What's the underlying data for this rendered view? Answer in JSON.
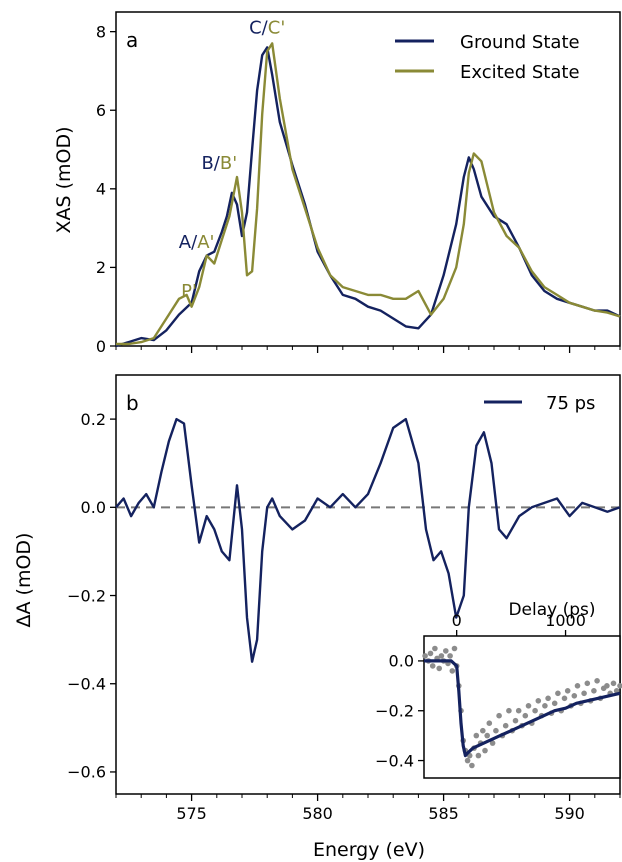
{
  "colors": {
    "ground": "#14225f",
    "excited": "#8a8a36",
    "dashed": "#777777",
    "scatter": "#8c8c8c",
    "axis": "#000000"
  },
  "chart_data": [
    {
      "id": "a",
      "type": "line",
      "panel_label": "a",
      "xlabel": "",
      "ylabel": "XAS (mOD)",
      "xlim": [
        572,
        592
      ],
      "ylim": [
        0,
        8.5
      ],
      "xticks": [
        575,
        580,
        585,
        590
      ],
      "xtick_labels": [
        "",
        "",
        "",
        ""
      ],
      "yticks": [
        0,
        2,
        4,
        6,
        8
      ],
      "ytick_labels": [
        "0",
        "2",
        "4",
        "6",
        "8"
      ],
      "legend": "top-right",
      "series": [
        {
          "name": "Ground State",
          "color": "#14225f",
          "x": [
            572.0,
            572.5,
            573.0,
            573.5,
            574.0,
            574.5,
            575.0,
            575.3,
            575.6,
            575.9,
            576.2,
            576.4,
            576.6,
            576.8,
            577.0,
            577.2,
            577.4,
            577.6,
            577.8,
            578.0,
            578.2,
            578.5,
            579.0,
            579.5,
            580.0,
            580.5,
            581.0,
            581.5,
            582.0,
            582.5,
            583.0,
            583.5,
            584.0,
            584.5,
            585.0,
            585.5,
            585.8,
            586.0,
            586.2,
            586.5,
            587.0,
            587.5,
            588.0,
            588.5,
            589.0,
            589.5,
            590.0,
            590.5,
            591.0,
            591.5,
            592.0
          ],
          "y": [
            0.0,
            0.1,
            0.2,
            0.15,
            0.4,
            0.8,
            1.1,
            1.9,
            2.3,
            2.4,
            2.9,
            3.3,
            3.9,
            3.6,
            2.8,
            3.4,
            5.0,
            6.5,
            7.4,
            7.6,
            6.9,
            5.7,
            4.6,
            3.6,
            2.4,
            1.8,
            1.3,
            1.2,
            1.0,
            0.9,
            0.7,
            0.5,
            0.45,
            0.8,
            1.8,
            3.1,
            4.3,
            4.8,
            4.5,
            3.8,
            3.3,
            3.1,
            2.5,
            1.8,
            1.4,
            1.2,
            1.1,
            1.0,
            0.9,
            0.9,
            0.75
          ]
        },
        {
          "name": "Excited State",
          "color": "#8a8a36",
          "x": [
            572.0,
            572.5,
            573.0,
            573.5,
            574.0,
            574.5,
            574.8,
            575.0,
            575.3,
            575.6,
            575.9,
            576.2,
            576.5,
            576.8,
            577.0,
            577.2,
            577.4,
            577.6,
            577.8,
            578.0,
            578.2,
            578.5,
            579.0,
            579.5,
            580.0,
            580.5,
            581.0,
            581.5,
            582.0,
            582.5,
            583.0,
            583.5,
            584.0,
            584.5,
            585.0,
            585.5,
            585.8,
            586.0,
            586.2,
            586.5,
            587.0,
            587.5,
            588.0,
            588.5,
            589.0,
            589.5,
            590.0,
            590.5,
            591.0,
            591.5,
            592.0
          ],
          "y": [
            0.05,
            0.05,
            0.1,
            0.2,
            0.7,
            1.2,
            1.3,
            1.0,
            1.5,
            2.3,
            2.1,
            2.7,
            3.3,
            4.3,
            3.4,
            1.8,
            1.9,
            3.5,
            5.9,
            7.5,
            7.7,
            6.3,
            4.5,
            3.5,
            2.5,
            1.8,
            1.5,
            1.4,
            1.3,
            1.3,
            1.2,
            1.2,
            1.4,
            0.8,
            1.2,
            2.0,
            3.1,
            4.4,
            4.9,
            4.7,
            3.4,
            2.8,
            2.5,
            1.9,
            1.5,
            1.3,
            1.1,
            1.0,
            0.9,
            0.85,
            0.75
          ]
        }
      ],
      "annotations": [
        {
          "x": 574.9,
          "y": 1.25,
          "parts": [
            {
              "text": "P'",
              "color": "#8a8a36"
            }
          ]
        },
        {
          "x": 575.2,
          "y": 2.5,
          "parts": [
            {
              "text": "A",
              "color": "#14225f"
            },
            {
              "text": "/",
              "color": "#14225f"
            },
            {
              "text": "A'",
              "color": "#8a8a36"
            }
          ]
        },
        {
          "x": 576.1,
          "y": 4.5,
          "parts": [
            {
              "text": "B",
              "color": "#14225f"
            },
            {
              "text": "/",
              "color": "#14225f"
            },
            {
              "text": "B'",
              "color": "#8a8a36"
            }
          ]
        },
        {
          "x": 578.0,
          "y": 7.95,
          "parts": [
            {
              "text": "C",
              "color": "#14225f"
            },
            {
              "text": "/",
              "color": "#14225f"
            },
            {
              "text": "C'",
              "color": "#8a8a36"
            }
          ]
        }
      ]
    },
    {
      "id": "b",
      "type": "line",
      "panel_label": "b",
      "xlabel": "Energy (eV)",
      "ylabel": "ΔA (mOD)",
      "xlim": [
        572,
        592
      ],
      "ylim": [
        -0.65,
        0.3
      ],
      "xticks": [
        575,
        580,
        585,
        590
      ],
      "xtick_labels": [
        "575",
        "580",
        "585",
        "590"
      ],
      "yticks": [
        -0.6,
        -0.4,
        -0.2,
        0.0,
        0.2
      ],
      "ytick_labels": [
        "−0.6",
        "−0.4",
        "−0.2",
        "0.0",
        "0.2"
      ],
      "legend": "top-right",
      "baseline": 0.0,
      "series": [
        {
          "name": "75 ps",
          "color": "#14225f",
          "x": [
            572.0,
            572.3,
            572.6,
            572.9,
            573.2,
            573.5,
            573.8,
            574.1,
            574.4,
            574.7,
            575.0,
            575.3,
            575.6,
            575.9,
            576.2,
            576.5,
            576.8,
            577.0,
            577.2,
            577.4,
            577.6,
            577.8,
            578.0,
            578.2,
            578.5,
            579.0,
            579.5,
            580.0,
            580.5,
            581.0,
            581.5,
            582.0,
            582.5,
            583.0,
            583.5,
            584.0,
            584.3,
            584.6,
            584.9,
            585.2,
            585.5,
            585.8,
            586.0,
            586.3,
            586.6,
            586.9,
            587.2,
            587.5,
            588.0,
            588.5,
            589.0,
            589.5,
            590.0,
            590.5,
            591.0,
            591.5,
            592.0
          ],
          "y": [
            0.0,
            0.02,
            -0.02,
            0.01,
            0.03,
            0.0,
            0.08,
            0.15,
            0.2,
            0.19,
            0.05,
            -0.08,
            -0.02,
            -0.05,
            -0.1,
            -0.12,
            0.05,
            -0.05,
            -0.25,
            -0.35,
            -0.3,
            -0.1,
            0.0,
            0.02,
            -0.02,
            -0.05,
            -0.03,
            0.02,
            0.0,
            0.03,
            0.0,
            0.03,
            0.1,
            0.18,
            0.2,
            0.1,
            -0.05,
            -0.12,
            -0.1,
            -0.15,
            -0.25,
            -0.2,
            0.0,
            0.14,
            0.17,
            0.1,
            -0.05,
            -0.07,
            -0.02,
            0.0,
            0.01,
            0.02,
            -0.02,
            0.01,
            0.0,
            -0.01,
            0.0
          ]
        }
      ]
    },
    {
      "id": "inset",
      "type": "scatter",
      "xlabel": "Delay (ps)",
      "ylabel": "",
      "xlim": [
        -300,
        1500
      ],
      "ylim": [
        -0.47,
        0.1
      ],
      "xticks": [
        0,
        1000
      ],
      "xtick_labels": [
        "0",
        "1000"
      ],
      "yticks": [
        0.0,
        -0.2,
        -0.4
      ],
      "ytick_labels": [
        "0.0",
        "−0.2",
        "−0.4"
      ],
      "points": {
        "color": "#8c8c8c",
        "x": [
          -290,
          -260,
          -240,
          -220,
          -200,
          -180,
          -160,
          -140,
          -120,
          -100,
          -80,
          -60,
          -40,
          -20,
          0,
          20,
          40,
          60,
          80,
          100,
          120,
          140,
          160,
          180,
          200,
          220,
          240,
          260,
          280,
          300,
          330,
          360,
          390,
          420,
          450,
          480,
          510,
          540,
          570,
          600,
          630,
          660,
          690,
          720,
          750,
          780,
          810,
          840,
          870,
          900,
          930,
          960,
          990,
          1020,
          1050,
          1080,
          1110,
          1140,
          1170,
          1200,
          1230,
          1260,
          1290,
          1320,
          1350,
          1380,
          1410,
          1440,
          1470,
          1500
        ],
        "y": [
          0.02,
          0.0,
          0.03,
          -0.02,
          0.05,
          0.01,
          -0.03,
          0.02,
          0.0,
          0.04,
          -0.01,
          0.02,
          -0.04,
          0.05,
          -0.02,
          -0.1,
          -0.2,
          -0.32,
          -0.36,
          -0.4,
          -0.38,
          -0.42,
          -0.35,
          -0.3,
          -0.38,
          -0.33,
          -0.28,
          -0.36,
          -0.3,
          -0.25,
          -0.33,
          -0.28,
          -0.22,
          -0.3,
          -0.26,
          -0.2,
          -0.28,
          -0.24,
          -0.2,
          -0.26,
          -0.22,
          -0.18,
          -0.25,
          -0.2,
          -0.16,
          -0.22,
          -0.18,
          -0.15,
          -0.21,
          -0.17,
          -0.13,
          -0.2,
          -0.15,
          -0.12,
          -0.18,
          -0.14,
          -0.1,
          -0.17,
          -0.13,
          -0.09,
          -0.16,
          -0.12,
          -0.08,
          -0.15,
          -0.11,
          -0.1,
          -0.13,
          -0.09,
          -0.12,
          -0.1
        ]
      },
      "fit": {
        "color": "#14225f",
        "x": [
          -300,
          -200,
          -100,
          -50,
          0,
          20,
          40,
          60,
          80,
          100,
          150,
          200,
          300,
          400,
          500,
          600,
          700,
          800,
          900,
          1000,
          1100,
          1200,
          1300,
          1400,
          1500
        ],
        "y": [
          0.0,
          0.0,
          0.0,
          0.0,
          -0.02,
          -0.12,
          -0.25,
          -0.34,
          -0.38,
          -0.37,
          -0.35,
          -0.34,
          -0.32,
          -0.3,
          -0.28,
          -0.26,
          -0.24,
          -0.22,
          -0.2,
          -0.19,
          -0.17,
          -0.16,
          -0.15,
          -0.14,
          -0.13
        ]
      }
    }
  ]
}
